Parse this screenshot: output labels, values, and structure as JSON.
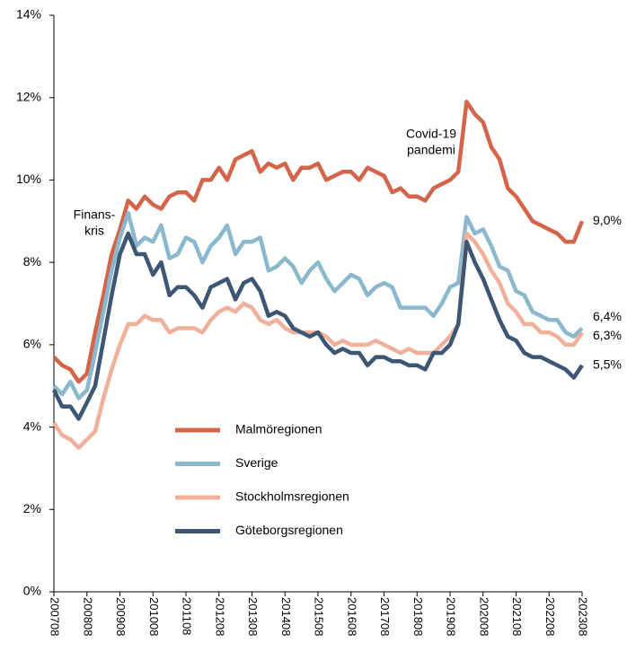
{
  "chart_data": {
    "type": "line",
    "categories": [
      "200708",
      null,
      null,
      null,
      "200808",
      null,
      null,
      null,
      "200908",
      null,
      null,
      null,
      "201008",
      null,
      null,
      null,
      "201108",
      null,
      null,
      null,
      "201208",
      null,
      null,
      null,
      "201308",
      null,
      null,
      null,
      "201408",
      null,
      null,
      null,
      "201508",
      null,
      null,
      null,
      "201608",
      null,
      null,
      null,
      "201708",
      null,
      null,
      null,
      "201808",
      null,
      null,
      null,
      "201908",
      null,
      null,
      null,
      "202008",
      null,
      null,
      null,
      "202108",
      null,
      null,
      null,
      "202208",
      null,
      null,
      null,
      "202308"
    ],
    "ylim": [
      0,
      14
    ],
    "yticks": [
      {
        "value": 0,
        "label": "0%"
      },
      {
        "value": 2,
        "label": "2%"
      },
      {
        "value": 4,
        "label": "4%"
      },
      {
        "value": 6,
        "label": "6%"
      },
      {
        "value": 8,
        "label": "8%"
      },
      {
        "value": 10,
        "label": "10%"
      },
      {
        "value": 12,
        "label": "12%"
      },
      {
        "value": 14,
        "label": "14%"
      }
    ],
    "legend": "center",
    "annotations": [
      {
        "lines": [
          "Finans-",
          "kris"
        ]
      },
      {
        "lines": [
          "Covid-19",
          "pandemi"
        ]
      }
    ],
    "series": [
      {
        "name": "Malmöregionen",
        "color": "#d4654a",
        "values": [
          5.7,
          5.5,
          5.4,
          5.1,
          5.3,
          6.3,
          7.2,
          8.2,
          8.8,
          9.5,
          9.3,
          9.6,
          9.4,
          9.3,
          9.6,
          9.7,
          9.7,
          9.5,
          10.0,
          10.0,
          10.3,
          10.0,
          10.5,
          10.6,
          10.7,
          10.2,
          10.4,
          10.3,
          10.4,
          10.0,
          10.3,
          10.3,
          10.4,
          10.0,
          10.1,
          10.2,
          10.2,
          10.0,
          10.3,
          10.2,
          10.1,
          9.7,
          9.8,
          9.6,
          9.6,
          9.5,
          9.8,
          9.9,
          10.0,
          10.2,
          11.9,
          11.6,
          11.4,
          10.8,
          10.5,
          9.8,
          9.6,
          9.3,
          9.0,
          8.9,
          8.8,
          8.7,
          8.5,
          8.5,
          9.0
        ],
        "value_labels": [
          null,
          null,
          null,
          null,
          null,
          null,
          null,
          null,
          null,
          null,
          null,
          null,
          null,
          null,
          null,
          null,
          null,
          null,
          null,
          null,
          null,
          null,
          null,
          null,
          null,
          null,
          null,
          null,
          null,
          null,
          null,
          null,
          null,
          null,
          null,
          null,
          null,
          null,
          null,
          null,
          null,
          null,
          null,
          null,
          null,
          null,
          null,
          null,
          null,
          null,
          null,
          null,
          null,
          null,
          null,
          null,
          null,
          null,
          null,
          null,
          null,
          null,
          null,
          null,
          "9,0%"
        ]
      },
      {
        "name": "Sverige",
        "color": "#8ab8cc",
        "values": [
          5.0,
          4.8,
          5.1,
          4.7,
          4.9,
          5.8,
          6.8,
          7.8,
          8.6,
          9.2,
          8.4,
          8.6,
          8.5,
          8.9,
          8.1,
          8.2,
          8.6,
          8.5,
          8.0,
          8.4,
          8.6,
          8.9,
          8.2,
          8.5,
          8.5,
          8.6,
          7.8,
          7.9,
          8.1,
          7.9,
          7.5,
          7.8,
          8.0,
          7.6,
          7.3,
          7.5,
          7.7,
          7.6,
          7.2,
          7.4,
          7.5,
          7.4,
          6.9,
          6.9,
          6.9,
          6.9,
          6.7,
          7.0,
          7.4,
          7.5,
          9.1,
          8.7,
          8.8,
          8.4,
          7.9,
          7.8,
          7.3,
          7.2,
          6.8,
          6.7,
          6.6,
          6.6,
          6.3,
          6.2,
          6.4
        ],
        "value_labels": [
          null,
          null,
          null,
          null,
          null,
          null,
          null,
          null,
          null,
          null,
          null,
          null,
          null,
          null,
          null,
          null,
          null,
          null,
          null,
          null,
          null,
          null,
          null,
          null,
          null,
          null,
          null,
          null,
          null,
          null,
          null,
          null,
          null,
          null,
          null,
          null,
          null,
          null,
          null,
          null,
          null,
          null,
          null,
          null,
          null,
          null,
          null,
          null,
          null,
          null,
          null,
          null,
          null,
          null,
          null,
          null,
          null,
          null,
          null,
          null,
          null,
          null,
          null,
          null,
          "6,4%"
        ]
      },
      {
        "name": "Stockholmsregionen",
        "color": "#f0b09a",
        "values": [
          4.1,
          3.8,
          3.7,
          3.5,
          3.7,
          3.9,
          4.7,
          5.4,
          6.0,
          6.5,
          6.5,
          6.7,
          6.6,
          6.6,
          6.3,
          6.4,
          6.4,
          6.4,
          6.3,
          6.6,
          6.8,
          6.9,
          6.8,
          7.0,
          6.9,
          6.6,
          6.5,
          6.6,
          6.4,
          6.3,
          6.3,
          6.3,
          6.3,
          6.2,
          6.0,
          6.1,
          6.0,
          6.0,
          6.0,
          6.1,
          6.0,
          5.9,
          5.8,
          5.9,
          5.8,
          5.8,
          5.8,
          6.0,
          6.2,
          6.5,
          8.7,
          8.5,
          8.2,
          7.8,
          7.5,
          7.0,
          6.8,
          6.5,
          6.5,
          6.3,
          6.3,
          6.2,
          6.0,
          6.0,
          6.3
        ],
        "value_labels": [
          null,
          null,
          null,
          null,
          null,
          null,
          null,
          null,
          null,
          null,
          null,
          null,
          null,
          null,
          null,
          null,
          null,
          null,
          null,
          null,
          null,
          null,
          null,
          null,
          null,
          null,
          null,
          null,
          null,
          null,
          null,
          null,
          null,
          null,
          null,
          null,
          null,
          null,
          null,
          null,
          null,
          null,
          null,
          null,
          null,
          null,
          null,
          null,
          null,
          null,
          null,
          null,
          null,
          null,
          null,
          null,
          null,
          null,
          null,
          null,
          null,
          null,
          null,
          null,
          "6,3%"
        ]
      },
      {
        "name": "Göteborgsregionen",
        "color": "#3c5673",
        "values": [
          4.9,
          4.5,
          4.5,
          4.2,
          4.6,
          5.0,
          6.1,
          7.2,
          8.2,
          8.7,
          8.2,
          8.2,
          7.7,
          8.0,
          7.2,
          7.4,
          7.4,
          7.2,
          6.9,
          7.4,
          7.5,
          7.6,
          7.1,
          7.5,
          7.6,
          7.3,
          6.7,
          6.8,
          6.7,
          6.4,
          6.3,
          6.2,
          6.3,
          6.0,
          5.8,
          5.9,
          5.8,
          5.8,
          5.5,
          5.7,
          5.7,
          5.6,
          5.6,
          5.5,
          5.5,
          5.4,
          5.8,
          5.8,
          6.0,
          6.5,
          8.5,
          8.0,
          7.6,
          7.1,
          6.6,
          6.2,
          6.1,
          5.8,
          5.7,
          5.7,
          5.6,
          5.5,
          5.4,
          5.2,
          5.5
        ],
        "value_labels": [
          null,
          null,
          null,
          null,
          null,
          null,
          null,
          null,
          null,
          null,
          null,
          null,
          null,
          null,
          null,
          null,
          null,
          null,
          null,
          null,
          null,
          null,
          null,
          null,
          null,
          null,
          null,
          null,
          null,
          null,
          null,
          null,
          null,
          null,
          null,
          null,
          null,
          null,
          null,
          null,
          null,
          null,
          null,
          null,
          null,
          null,
          null,
          null,
          null,
          null,
          null,
          null,
          null,
          null,
          null,
          null,
          null,
          null,
          null,
          null,
          null,
          null,
          null,
          null,
          "5,5%"
        ]
      }
    ]
  }
}
